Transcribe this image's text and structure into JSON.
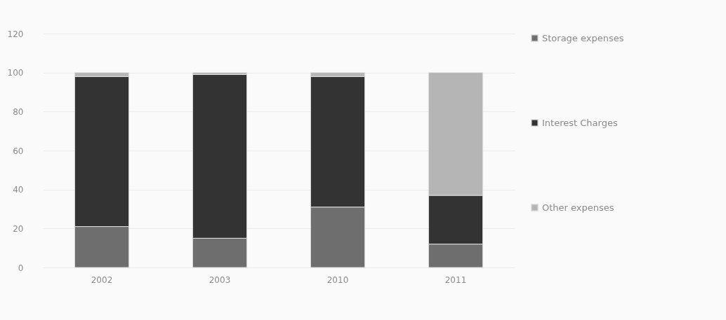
{
  "chart_data": {
    "type": "bar",
    "stacked": true,
    "categories": [
      "2002",
      "2003",
      "2010",
      "2011"
    ],
    "series": [
      {
        "name": "Storage expenses",
        "color": "#6e6e6e",
        "values": [
          21,
          15,
          31,
          12
        ]
      },
      {
        "name": "Interest Charges",
        "color": "#333333",
        "values": [
          77,
          84,
          67,
          25
        ]
      },
      {
        "name": "Other expenses",
        "color": "#b5b5b5",
        "values": [
          2,
          1,
          2,
          63
        ]
      }
    ],
    "ylim": [
      0,
      120
    ],
    "yticks": [
      0,
      20,
      40,
      60,
      80,
      100,
      120
    ],
    "grid": "y",
    "legend": "right"
  }
}
